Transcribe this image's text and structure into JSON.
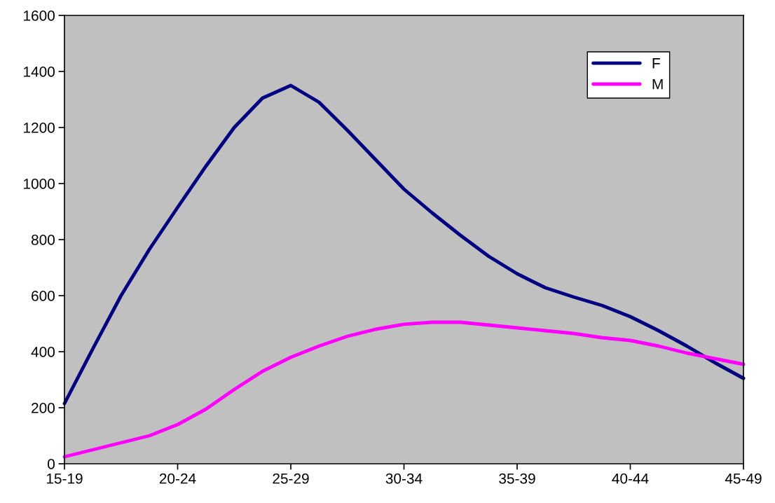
{
  "chart_data": {
    "type": "line",
    "categories": [
      "15-19",
      null,
      null,
      null,
      "20-24",
      null,
      null,
      null,
      "25-29",
      null,
      null,
      null,
      "30-34",
      null,
      null,
      null,
      "35-39",
      null,
      null,
      null,
      "40-44",
      null,
      null,
      null,
      "45-49"
    ],
    "ylim": [
      0,
      1600
    ],
    "yticks": [
      0,
      200,
      400,
      600,
      800,
      1000,
      1200,
      1400,
      1600
    ],
    "grid": false,
    "legend": "top right",
    "marker": "none",
    "line_style": "solid",
    "series": [
      {
        "name": "F",
        "color": "#000080",
        "values": [
          215,
          410,
          600,
          765,
          915,
          1062,
          1200,
          1305,
          1350,
          1290,
          1190,
          1085,
          980,
          895,
          815,
          740,
          678,
          628,
          595,
          565,
          525,
          475,
          420,
          360,
          305
        ]
      },
      {
        "name": "M",
        "color": "#ff00ff",
        "values": [
          25,
          50,
          75,
          100,
          140,
          195,
          265,
          330,
          380,
          420,
          455,
          480,
          498,
          505,
          505,
          495,
          485,
          475,
          465,
          450,
          440,
          420,
          395,
          375,
          355
        ]
      }
    ]
  }
}
